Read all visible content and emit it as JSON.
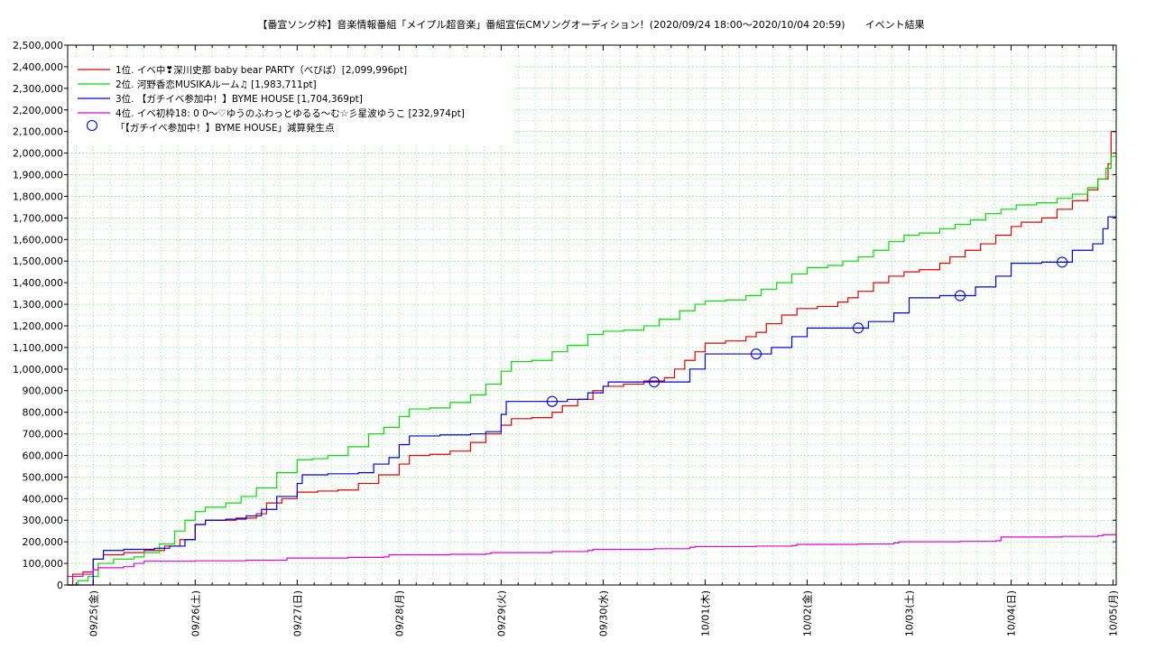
{
  "chart_data": {
    "type": "line",
    "title": "【番宣ソング枠】音楽情報番組「メイプル超音楽」番組宣伝CMソングオーディション！(2020/09/24 18:00〜2020/10/04 20:59)　　イベント結果",
    "xlabel": "",
    "ylabel": "",
    "xlim": [
      -0.25,
      10.03
    ],
    "ylim": [
      0,
      2500000
    ],
    "grid": true,
    "legend_position": "top-left",
    "y_ticks": [
      "0",
      "100,000",
      "200,000",
      "300,000",
      "400,000",
      "500,000",
      "600,000",
      "700,000",
      "800,000",
      "900,000",
      "1,000,000",
      "1,100,000",
      "1,200,000",
      "1,300,000",
      "1,400,000",
      "1,500,000",
      "1,600,000",
      "1,700,000",
      "1,800,000",
      "1,900,000",
      "2,000,000",
      "2,100,000",
      "2,200,000",
      "2,300,000",
      "2,400,000",
      "2,500,000"
    ],
    "x_ticks": [
      {
        "x": 0,
        "label": "09/25(金)"
      },
      {
        "x": 1,
        "label": "09/26(土)"
      },
      {
        "x": 2,
        "label": "09/27(日)"
      },
      {
        "x": 3,
        "label": "09/28(月)"
      },
      {
        "x": 4,
        "label": "09/29(火)"
      },
      {
        "x": 5,
        "label": "09/30(水)"
      },
      {
        "x": 6,
        "label": "10/01(木)"
      },
      {
        "x": 7,
        "label": "10/02(金)"
      },
      {
        "x": 8,
        "label": "10/03(土)"
      },
      {
        "x": 9,
        "label": "10/04(日)"
      },
      {
        "x": 10,
        "label": "10/05(月)"
      }
    ],
    "series": [
      {
        "name": "1位. イベ中❣深川史那 baby bear PARTY（べびば）[2,099,996pt]",
        "color": "#e00000",
        "points": [
          [
            -0.25,
            0
          ],
          [
            -0.2,
            50000
          ],
          [
            -0.1,
            60000
          ],
          [
            0.0,
            120000
          ],
          [
            0.1,
            140000
          ],
          [
            0.3,
            150000
          ],
          [
            0.5,
            160000
          ],
          [
            0.7,
            180000
          ],
          [
            0.85,
            210000
          ],
          [
            1.0,
            280000
          ],
          [
            1.1,
            300000
          ],
          [
            1.4,
            310000
          ],
          [
            1.6,
            330000
          ],
          [
            1.7,
            380000
          ],
          [
            1.85,
            400000
          ],
          [
            2.0,
            430000
          ],
          [
            2.2,
            435000
          ],
          [
            2.4,
            440000
          ],
          [
            2.6,
            470000
          ],
          [
            2.8,
            510000
          ],
          [
            3.0,
            560000
          ],
          [
            3.1,
            600000
          ],
          [
            3.3,
            605000
          ],
          [
            3.5,
            620000
          ],
          [
            3.7,
            660000
          ],
          [
            3.85,
            700000
          ],
          [
            4.0,
            740000
          ],
          [
            4.1,
            770000
          ],
          [
            4.3,
            775000
          ],
          [
            4.5,
            800000
          ],
          [
            4.6,
            830000
          ],
          [
            4.75,
            860000
          ],
          [
            4.9,
            900000
          ],
          [
            5.0,
            920000
          ],
          [
            5.2,
            930000
          ],
          [
            5.4,
            945000
          ],
          [
            5.6,
            960000
          ],
          [
            5.7,
            1000000
          ],
          [
            5.8,
            1040000
          ],
          [
            5.9,
            1080000
          ],
          [
            6.0,
            1120000
          ],
          [
            6.2,
            1130000
          ],
          [
            6.4,
            1150000
          ],
          [
            6.5,
            1170000
          ],
          [
            6.6,
            1210000
          ],
          [
            6.75,
            1250000
          ],
          [
            6.9,
            1280000
          ],
          [
            7.1,
            1290000
          ],
          [
            7.3,
            1310000
          ],
          [
            7.4,
            1330000
          ],
          [
            7.5,
            1360000
          ],
          [
            7.65,
            1400000
          ],
          [
            7.8,
            1430000
          ],
          [
            7.95,
            1450000
          ],
          [
            8.1,
            1460000
          ],
          [
            8.3,
            1490000
          ],
          [
            8.4,
            1520000
          ],
          [
            8.55,
            1550000
          ],
          [
            8.7,
            1580000
          ],
          [
            8.85,
            1620000
          ],
          [
            9.0,
            1660000
          ],
          [
            9.1,
            1680000
          ],
          [
            9.3,
            1700000
          ],
          [
            9.45,
            1740000
          ],
          [
            9.6,
            1780000
          ],
          [
            9.75,
            1830000
          ],
          [
            9.85,
            1880000
          ],
          [
            9.95,
            1950000
          ],
          [
            9.98,
            2100000
          ],
          [
            10.03,
            2100000
          ]
        ]
      },
      {
        "name": "2位. 河野香恋MUSIKAルーム♫ [1,983,711pt]",
        "color": "#00dd00",
        "points": [
          [
            -0.25,
            0
          ],
          [
            -0.15,
            20000
          ],
          [
            -0.05,
            40000
          ],
          [
            0.05,
            100000
          ],
          [
            0.2,
            120000
          ],
          [
            0.4,
            130000
          ],
          [
            0.5,
            150000
          ],
          [
            0.65,
            190000
          ],
          [
            0.8,
            250000
          ],
          [
            0.9,
            300000
          ],
          [
            1.0,
            340000
          ],
          [
            1.1,
            360000
          ],
          [
            1.3,
            380000
          ],
          [
            1.45,
            410000
          ],
          [
            1.6,
            450000
          ],
          [
            1.8,
            520000
          ],
          [
            2.0,
            580000
          ],
          [
            2.15,
            585000
          ],
          [
            2.3,
            600000
          ],
          [
            2.5,
            640000
          ],
          [
            2.7,
            700000
          ],
          [
            2.85,
            730000
          ],
          [
            3.0,
            780000
          ],
          [
            3.1,
            815000
          ],
          [
            3.3,
            820000
          ],
          [
            3.5,
            845000
          ],
          [
            3.7,
            880000
          ],
          [
            3.85,
            930000
          ],
          [
            4.0,
            990000
          ],
          [
            4.1,
            1035000
          ],
          [
            4.3,
            1040000
          ],
          [
            4.5,
            1080000
          ],
          [
            4.65,
            1110000
          ],
          [
            4.85,
            1160000
          ],
          [
            5.0,
            1175000
          ],
          [
            5.2,
            1180000
          ],
          [
            5.4,
            1200000
          ],
          [
            5.55,
            1230000
          ],
          [
            5.75,
            1270000
          ],
          [
            5.9,
            1300000
          ],
          [
            6.0,
            1315000
          ],
          [
            6.2,
            1320000
          ],
          [
            6.4,
            1340000
          ],
          [
            6.55,
            1370000
          ],
          [
            6.7,
            1400000
          ],
          [
            6.85,
            1440000
          ],
          [
            7.0,
            1470000
          ],
          [
            7.2,
            1480000
          ],
          [
            7.35,
            1500000
          ],
          [
            7.5,
            1520000
          ],
          [
            7.65,
            1550000
          ],
          [
            7.8,
            1590000
          ],
          [
            7.95,
            1620000
          ],
          [
            8.1,
            1630000
          ],
          [
            8.3,
            1650000
          ],
          [
            8.45,
            1670000
          ],
          [
            8.6,
            1690000
          ],
          [
            8.75,
            1720000
          ],
          [
            8.9,
            1740000
          ],
          [
            9.05,
            1760000
          ],
          [
            9.25,
            1770000
          ],
          [
            9.45,
            1790000
          ],
          [
            9.6,
            1810000
          ],
          [
            9.75,
            1840000
          ],
          [
            9.85,
            1880000
          ],
          [
            9.93,
            1930000
          ],
          [
            9.98,
            1985000
          ],
          [
            10.03,
            1985000
          ]
        ]
      },
      {
        "name": "3位. 【ガチイベ参加中！】BYME HOUSE [1,704,369pt]",
        "color": "#0000dd",
        "points": [
          [
            -0.25,
            0
          ],
          [
            -0.1,
            0
          ],
          [
            0.0,
            120000
          ],
          [
            0.1,
            160000
          ],
          [
            0.3,
            165000
          ],
          [
            0.6,
            170000
          ],
          [
            0.75,
            180000
          ],
          [
            0.9,
            210000
          ],
          [
            1.0,
            280000
          ],
          [
            1.1,
            300000
          ],
          [
            1.3,
            305000
          ],
          [
            1.5,
            320000
          ],
          [
            1.65,
            350000
          ],
          [
            1.8,
            410000
          ],
          [
            2.0,
            470000
          ],
          [
            2.05,
            510000
          ],
          [
            2.3,
            515000
          ],
          [
            2.6,
            520000
          ],
          [
            2.75,
            560000
          ],
          [
            2.9,
            590000
          ],
          [
            3.0,
            650000
          ],
          [
            3.1,
            690000
          ],
          [
            3.4,
            695000
          ],
          [
            3.7,
            700000
          ],
          [
            3.85,
            710000
          ],
          [
            4.0,
            790000
          ],
          [
            4.05,
            850000
          ],
          [
            4.3,
            850000
          ],
          [
            4.5,
            850000
          ],
          [
            4.65,
            860000
          ],
          [
            4.85,
            890000
          ],
          [
            5.0,
            920000
          ],
          [
            5.05,
            940000
          ],
          [
            5.3,
            940000
          ],
          [
            5.5,
            940000
          ],
          [
            5.75,
            940000
          ],
          [
            5.85,
            1000000
          ],
          [
            6.0,
            1070000
          ],
          [
            6.3,
            1070000
          ],
          [
            6.5,
            1070000
          ],
          [
            6.65,
            1100000
          ],
          [
            6.85,
            1150000
          ],
          [
            7.0,
            1190000
          ],
          [
            7.3,
            1190000
          ],
          [
            7.5,
            1190000
          ],
          [
            7.6,
            1220000
          ],
          [
            7.85,
            1260000
          ],
          [
            8.0,
            1330000
          ],
          [
            8.3,
            1340000
          ],
          [
            8.5,
            1340000
          ],
          [
            8.65,
            1380000
          ],
          [
            8.85,
            1430000
          ],
          [
            9.0,
            1490000
          ],
          [
            9.3,
            1495000
          ],
          [
            9.5,
            1495000
          ],
          [
            9.6,
            1550000
          ],
          [
            9.8,
            1580000
          ],
          [
            9.9,
            1650000
          ],
          [
            9.95,
            1705000
          ],
          [
            10.03,
            1705000
          ]
        ]
      },
      {
        "name": "4位. イベ初枠18: 0 0〜♡ゆうのふわっとゆるる〜む☆彡星波ゆうこ [232,974pt]",
        "color": "#dd00dd",
        "points": [
          [
            -0.25,
            40000
          ],
          [
            -0.1,
            50000
          ],
          [
            0.0,
            70000
          ],
          [
            0.05,
            80000
          ],
          [
            0.3,
            85000
          ],
          [
            0.4,
            100000
          ],
          [
            0.5,
            110000
          ],
          [
            1.0,
            112000
          ],
          [
            1.5,
            115000
          ],
          [
            1.85,
            115000
          ],
          [
            1.9,
            125000
          ],
          [
            2.5,
            128000
          ],
          [
            2.85,
            130000
          ],
          [
            2.9,
            140000
          ],
          [
            3.5,
            142000
          ],
          [
            3.85,
            145000
          ],
          [
            3.9,
            150000
          ],
          [
            4.5,
            155000
          ],
          [
            4.85,
            160000
          ],
          [
            4.9,
            165000
          ],
          [
            5.5,
            168000
          ],
          [
            5.85,
            175000
          ],
          [
            5.9,
            178000
          ],
          [
            6.5,
            180000
          ],
          [
            6.85,
            183000
          ],
          [
            6.9,
            188000
          ],
          [
            7.5,
            190000
          ],
          [
            7.85,
            195000
          ],
          [
            7.9,
            200000
          ],
          [
            8.5,
            202000
          ],
          [
            8.85,
            205000
          ],
          [
            8.9,
            222000
          ],
          [
            9.5,
            225000
          ],
          [
            9.85,
            228000
          ],
          [
            9.9,
            233000
          ],
          [
            10.03,
            233000
          ]
        ]
      }
    ],
    "markers": {
      "name": "「【ガチイベ参加中！】BYME HOUSE」減算発生点",
      "color": "#0000dd",
      "points": [
        [
          4.5,
          850000
        ],
        [
          5.5,
          940000
        ],
        [
          6.5,
          1070000
        ],
        [
          7.5,
          1190000
        ],
        [
          8.5,
          1340000
        ],
        [
          9.5,
          1495000
        ]
      ]
    }
  }
}
